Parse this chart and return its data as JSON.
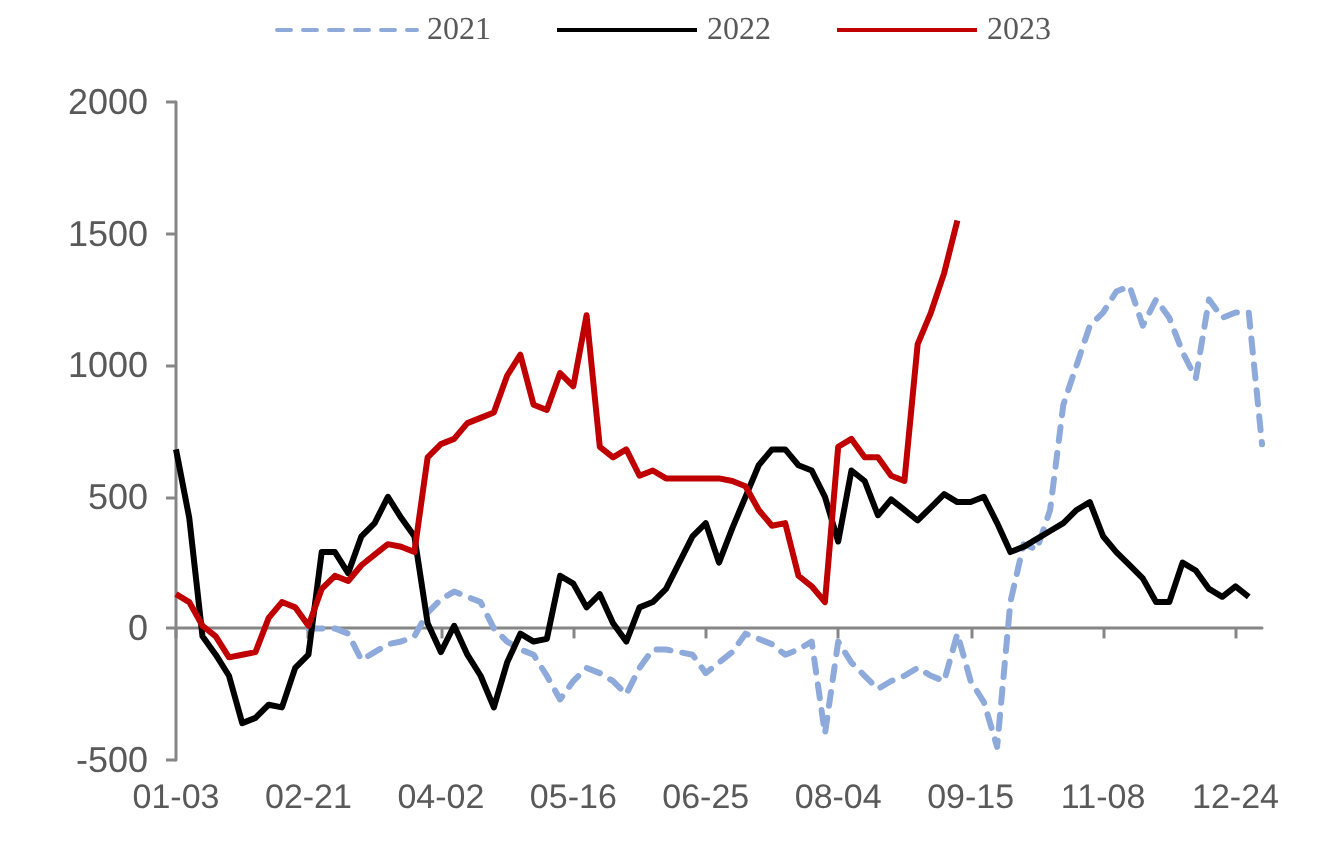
{
  "chart_data": {
    "type": "line",
    "categories": [
      "01-03",
      null,
      null,
      null,
      null,
      null,
      null,
      null,
      null,
      null,
      "02-21",
      null,
      null,
      null,
      null,
      null,
      null,
      null,
      null,
      null,
      "04-02",
      null,
      null,
      null,
      null,
      null,
      null,
      null,
      null,
      null,
      "05-16",
      null,
      null,
      null,
      null,
      null,
      null,
      null,
      null,
      null,
      "06-25",
      null,
      null,
      null,
      null,
      null,
      null,
      null,
      null,
      null,
      "08-04",
      null,
      null,
      null,
      null,
      null,
      null,
      null,
      null,
      null,
      "09-15",
      null,
      null,
      null,
      null,
      null,
      null,
      null,
      null,
      null,
      "11-08",
      null,
      null,
      null,
      null,
      null,
      null,
      null,
      null,
      null,
      "12-24",
      null,
      null
    ],
    "series": [
      {
        "name": "2021",
        "color": "#8eaadb",
        "line_style": "dashed",
        "values": [
          null,
          null,
          null,
          null,
          null,
          null,
          null,
          null,
          null,
          null,
          0,
          0,
          0,
          -20,
          -120,
          -90,
          -60,
          -50,
          -30,
          60,
          110,
          140,
          120,
          100,
          0,
          -50,
          -80,
          -100,
          -180,
          -270,
          -200,
          -150,
          -170,
          -200,
          -250,
          -150,
          -80,
          -80,
          -90,
          -100,
          -170,
          -130,
          -90,
          -20,
          -40,
          -60,
          -100,
          -80,
          -50,
          -400,
          -50,
          -130,
          -180,
          -230,
          -200,
          -180,
          -150,
          -180,
          -200,
          -20,
          -200,
          -280,
          -450,
          100,
          320,
          300,
          450,
          850,
          1000,
          1150,
          1200,
          1280,
          1300,
          1150,
          1250,
          1180,
          1050,
          950,
          1250,
          1180,
          1200,
          1200,
          700
        ]
      },
      {
        "name": "2022",
        "color": "#000000",
        "line_style": "solid",
        "values": [
          680,
          420,
          -30,
          -100,
          -180,
          -360,
          -340,
          -290,
          -300,
          -150,
          -100,
          290,
          290,
          210,
          350,
          400,
          500,
          420,
          350,
          20,
          -90,
          10,
          -100,
          -180,
          -300,
          -130,
          -20,
          -50,
          -40,
          200,
          170,
          80,
          130,
          20,
          -50,
          80,
          100,
          150,
          250,
          350,
          400,
          250,
          380,
          500,
          620,
          680,
          680,
          620,
          600,
          500,
          330,
          600,
          560,
          430,
          490,
          450,
          410,
          460,
          510,
          480,
          480,
          500,
          400,
          290,
          310,
          340,
          370,
          400,
          450,
          480,
          350,
          290,
          240,
          190,
          100,
          100,
          250,
          220,
          150,
          120,
          160,
          120,
          null
        ]
      },
      {
        "name": "2023",
        "color": "#c00000",
        "line_style": "solid",
        "values": [
          130,
          100,
          10,
          -30,
          -110,
          -100,
          -90,
          40,
          100,
          80,
          10,
          150,
          200,
          180,
          240,
          280,
          320,
          310,
          290,
          650,
          700,
          720,
          780,
          800,
          820,
          960,
          1040,
          850,
          830,
          970,
          920,
          1190,
          690,
          650,
          680,
          580,
          600,
          570,
          570,
          570,
          570,
          570,
          560,
          540,
          450,
          390,
          400,
          200,
          160,
          100,
          690,
          720,
          650,
          650,
          580,
          560,
          1080,
          1200,
          1350,
          1550,
          null,
          null,
          null,
          null,
          null,
          null,
          null,
          null,
          null,
          null,
          null,
          null,
          null,
          null,
          null,
          null,
          null,
          null,
          null,
          null,
          null,
          null,
          null
        ]
      }
    ],
    "ylim": [
      -500,
      2000
    ],
    "yticks": [
      -500,
      0,
      500,
      1000,
      1500,
      2000
    ],
    "legend": "top",
    "marker": "none"
  }
}
